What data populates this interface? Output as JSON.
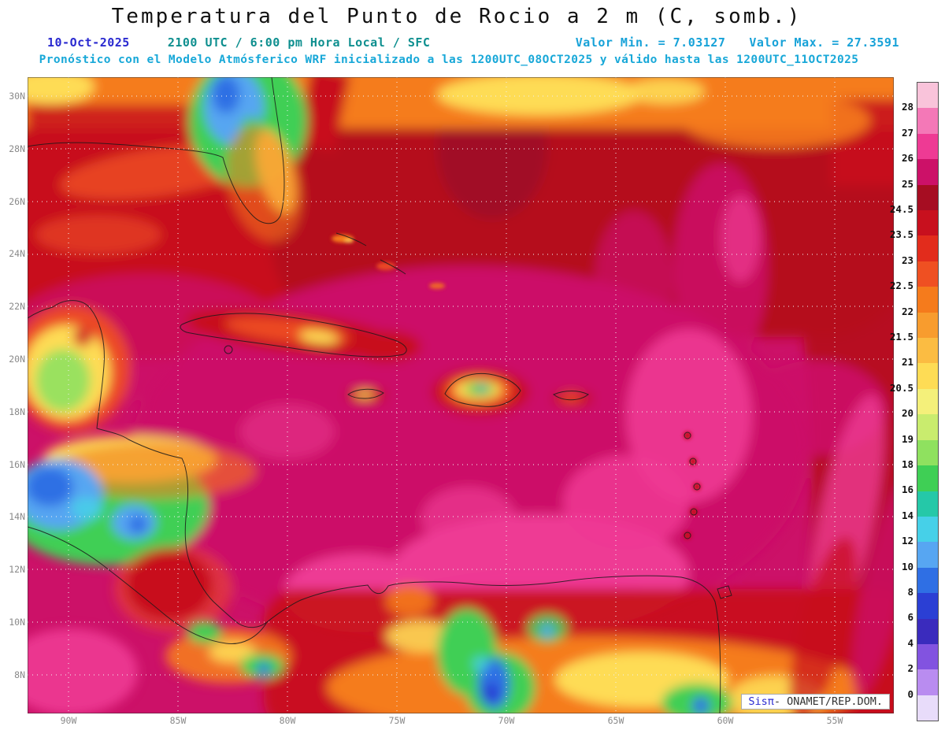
{
  "header": {
    "title": "Temperatura del Punto de Rocio a 2 m (C, somb.)",
    "date": "10-Oct-2025",
    "time": "2100 UTC / 6:00 pm Hora Local / SFC",
    "min_label": "Valor Min. = 7.03127",
    "max_label": "Valor Max. = 27.3591",
    "model_info": "Pronóstico con el Modelo Atmósferico WRF inicializado a las 1200UTC_08OCT2025 y válido hasta las  1200UTC_11OCT2025"
  },
  "map": {
    "lat_labels": [
      "30N",
      "28N",
      "26N",
      "24N",
      "22N",
      "20N",
      "18N",
      "16N",
      "14N",
      "12N",
      "10N",
      "8N"
    ],
    "lon_labels": [
      "90W",
      "85W",
      "80W",
      "75W",
      "70W",
      "65W",
      "60W",
      "55W"
    ],
    "credit_brand": "Sisπ",
    "credit_text": "- ONAMET/REP.DOM."
  },
  "colorbar": {
    "boundary_labels": [
      "28",
      "27",
      "26",
      "25",
      "24.5",
      "23.5",
      "23",
      "22.5",
      "22",
      "21.5",
      "21",
      "20.5",
      "20",
      "19",
      "18",
      "16",
      "14",
      "12",
      "10",
      "8",
      "6",
      "4",
      "2",
      "0"
    ],
    "colors": [
      "#f9c3da",
      "#f478b7",
      "#ee3a94",
      "#cc1168",
      "#a60d22",
      "#c8101e",
      "#e22c1c",
      "#ef5022",
      "#f57b1c",
      "#f89c2e",
      "#fbbc42",
      "#fedc55",
      "#f4f07a",
      "#c9ec6e",
      "#8fe15f",
      "#3fcf55",
      "#25c8a8",
      "#46d0e8",
      "#57a6f2",
      "#2f6fe4",
      "#2b3fd4",
      "#3a2bbd",
      "#8253e0",
      "#b98cf0",
      "#e8dcfa"
    ]
  },
  "chart_data": {
    "type": "heatmap",
    "title": "Temperatura del Punto de Rocio a 2 m (C, somb.)",
    "variable": "Dew point temperature at 2 m (C, shaded)",
    "valid_time": "10-Oct-2025 2100 UTC / 6:00 pm Hora Local / SFC",
    "model": "WRF inicializado 1200UTC_08OCT2025, válido hasta 1200UTC_11OCT2025",
    "value_min": 7.03127,
    "value_max": 27.3591,
    "lat_range": [
      "8N",
      "30N"
    ],
    "lon_range": [
      "90W",
      "55W"
    ],
    "levels": [
      0,
      2,
      4,
      6,
      8,
      10,
      12,
      14,
      16,
      18,
      19,
      20,
      20.5,
      21,
      21.5,
      22,
      22.5,
      23,
      23.5,
      24.5,
      25,
      26,
      27,
      28
    ],
    "legend_position": "right",
    "grid": "dotted, every 2 deg lat / 5 deg lon"
  }
}
